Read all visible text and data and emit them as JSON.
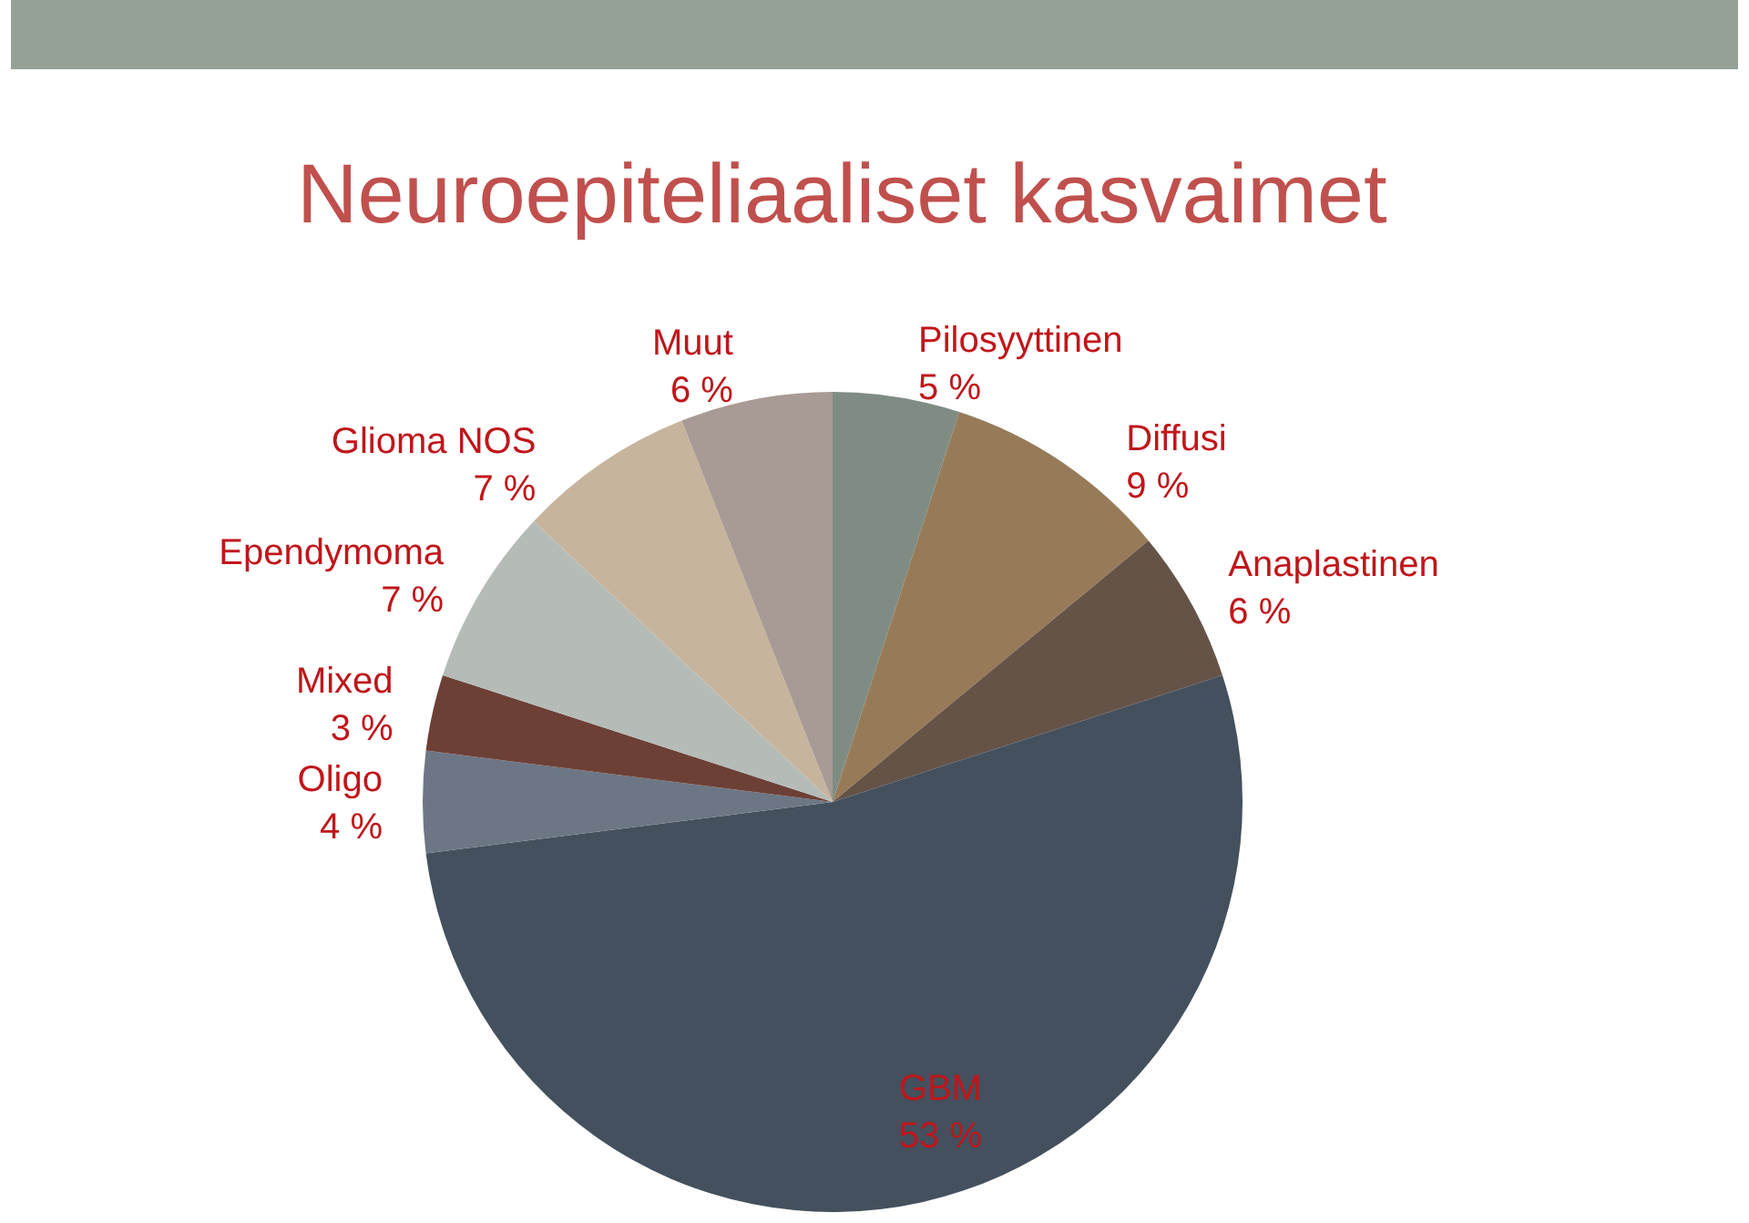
{
  "chart_data": {
    "type": "pie",
    "title": "Neuroepiteliaaliset kasvaimet",
    "categories": [
      "Pilosyyttinen",
      "Diffusi",
      "Anaplastinen",
      "GBM",
      "Oligo",
      "Mixed",
      "Ependymoma",
      "Glioma NOS",
      "Muut"
    ],
    "values": [
      5,
      9,
      6,
      53,
      4,
      3,
      7,
      7,
      6
    ],
    "value_labels": [
      "5 %",
      "9 %",
      "6 %",
      "53 %",
      "4 %",
      "3 %",
      "7 %",
      "7 %",
      "6 %"
    ],
    "colors": [
      "#7f8c84",
      "#977b58",
      "#655348",
      "#44505d",
      "#6c7685",
      "#6d4036",
      "#b5bcb7",
      "#c7b49d",
      "#a89a94"
    ],
    "legend": false
  }
}
